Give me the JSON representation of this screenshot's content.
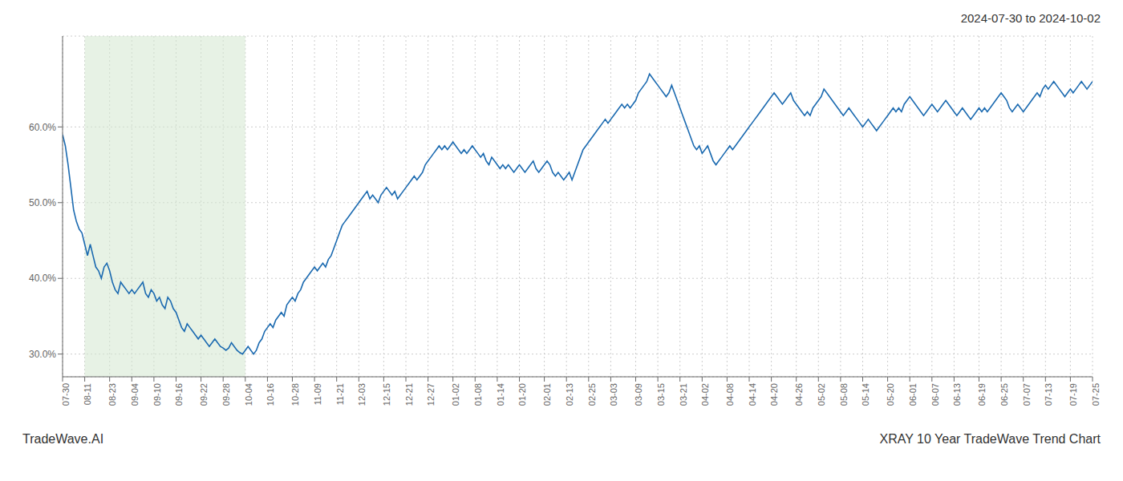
{
  "chart_data": {
    "type": "line",
    "title": "2024-07-30 to 2024-10-02",
    "annotations": [
      "TradeWave.AI",
      "XRAY 10 Year TradeWave Trend Chart"
    ],
    "color": "#1b6ab0",
    "grid": true,
    "ylim": [
      27.0,
      72.0
    ],
    "yticks": [
      {
        "value": 30.0,
        "label": "30.0%"
      },
      {
        "value": 40.0,
        "label": "40.0%"
      },
      {
        "value": 50.0,
        "label": "50.0%"
      },
      {
        "value": 60.0,
        "label": "60.0%"
      }
    ],
    "shade": {
      "start": "08-11",
      "end": "10-04",
      "color": "#d4e8d0"
    },
    "categories": [
      "07-30",
      null,
      null,
      null,
      null,
      null,
      null,
      null,
      "08-11",
      null,
      null,
      null,
      null,
      null,
      null,
      null,
      null,
      "08-23",
      null,
      null,
      null,
      null,
      null,
      null,
      null,
      "09-04",
      null,
      null,
      null,
      null,
      null,
      null,
      null,
      "09-10",
      null,
      null,
      null,
      null,
      null,
      null,
      null,
      "09-16",
      null,
      null,
      null,
      null,
      null,
      null,
      null,
      null,
      "09-22",
      null,
      null,
      null,
      null,
      null,
      null,
      null,
      "09-28",
      null,
      null,
      null,
      null,
      null,
      null,
      null,
      "10-04",
      null,
      null,
      null,
      null,
      null,
      null,
      null,
      "10-16",
      null,
      null,
      null,
      null,
      null,
      null,
      null,
      null,
      "10-28",
      null,
      null,
      null,
      null,
      null,
      null,
      null,
      "11-09",
      null,
      null,
      null,
      null,
      null,
      null,
      null,
      "11-21",
      null,
      null,
      null,
      null,
      null,
      null,
      null,
      "12-03",
      null,
      null,
      null,
      null,
      null,
      null,
      null,
      null,
      "12-15",
      null,
      null,
      null,
      null,
      null,
      null,
      null,
      "12-21",
      null,
      null,
      null,
      null,
      null,
      null,
      null,
      "12-27",
      null,
      null,
      null,
      null,
      null,
      null,
      null,
      null,
      "01-02",
      null,
      null,
      null,
      null,
      null,
      null,
      null,
      "01-08",
      null,
      null,
      null,
      null,
      null,
      null,
      null,
      "01-14",
      null,
      null,
      null,
      null,
      null,
      null,
      null,
      "01-20",
      null,
      null,
      null,
      null,
      null,
      null,
      null,
      null,
      "02-01",
      null,
      null,
      null,
      null,
      null,
      null,
      null,
      "02-13",
      null,
      null,
      null,
      null,
      null,
      null,
      null,
      "02-25",
      null,
      null,
      null,
      null,
      null,
      null,
      null,
      "03-03",
      null,
      null,
      null,
      null,
      null,
      null,
      null,
      null,
      "03-09",
      null,
      null,
      null,
      null,
      null,
      null,
      null,
      "03-15",
      null,
      null,
      null,
      null,
      null,
      null,
      null,
      "03-21",
      null,
      null,
      null,
      null,
      null,
      null,
      null,
      "04-02",
      null,
      null,
      null,
      null,
      null,
      null,
      null,
      null,
      "04-08",
      null,
      null,
      null,
      null,
      null,
      null,
      null,
      "04-14",
      null,
      null,
      null,
      null,
      null,
      null,
      null,
      "04-20",
      null,
      null,
      null,
      null,
      null,
      null,
      null,
      null,
      "04-26",
      null,
      null,
      null,
      null,
      null,
      null,
      null,
      "05-02",
      null,
      null,
      null,
      null,
      null,
      null,
      null,
      "05-08",
      null,
      null,
      null,
      null,
      null,
      null,
      null,
      "05-14",
      null,
      null,
      null,
      null,
      null,
      null,
      null,
      null,
      "05-20",
      null,
      null,
      null,
      null,
      null,
      null,
      null,
      "06-01",
      null,
      null,
      null,
      null,
      null,
      null,
      null,
      "06-07",
      null,
      null,
      null,
      null,
      null,
      null,
      null,
      "06-13",
      null,
      null,
      null,
      null,
      null,
      null,
      null,
      null,
      "06-19",
      null,
      null,
      null,
      null,
      null,
      null,
      null,
      "06-25",
      null,
      null,
      null,
      null,
      null,
      null,
      null,
      "07-07",
      null,
      null,
      null,
      null,
      null,
      null,
      null,
      "07-13",
      null,
      null,
      null,
      null,
      null,
      null,
      null,
      null,
      "07-19",
      null,
      null,
      null,
      null,
      null,
      null,
      null,
      "07-25"
    ],
    "values": [
      59.0,
      57.5,
      55.0,
      52.0,
      49.0,
      47.5,
      46.5,
      46.0,
      44.5,
      43.0,
      44.5,
      43.0,
      41.5,
      41.0,
      40.0,
      41.5,
      42.0,
      41.0,
      39.5,
      38.5,
      38.0,
      39.5,
      39.0,
      38.5,
      38.0,
      38.5,
      38.0,
      38.5,
      39.0,
      39.5,
      38.0,
      37.5,
      38.5,
      38.0,
      37.0,
      37.5,
      36.5,
      36.0,
      37.5,
      37.0,
      36.0,
      35.5,
      34.5,
      33.5,
      33.0,
      34.0,
      33.5,
      33.0,
      32.5,
      32.0,
      32.5,
      32.0,
      31.5,
      31.0,
      31.5,
      32.0,
      31.5,
      31.0,
      30.8,
      30.5,
      30.8,
      31.5,
      31.0,
      30.5,
      30.2,
      30.0,
      30.5,
      31.0,
      30.5,
      30.0,
      30.5,
      31.5,
      32.0,
      33.0,
      33.5,
      34.0,
      33.5,
      34.5,
      35.0,
      35.5,
      35.0,
      36.5,
      37.0,
      37.5,
      37.0,
      38.0,
      38.5,
      39.5,
      40.0,
      40.5,
      41.0,
      41.5,
      41.0,
      41.5,
      42.0,
      41.5,
      42.5,
      43.0,
      44.0,
      45.0,
      46.0,
      47.0,
      47.5,
      48.0,
      48.5,
      49.0,
      49.5,
      50.0,
      50.5,
      51.0,
      51.5,
      50.5,
      51.0,
      50.5,
      50.0,
      51.0,
      51.5,
      52.0,
      51.5,
      51.0,
      51.5,
      50.5,
      51.0,
      51.5,
      52.0,
      52.5,
      53.0,
      53.5,
      53.0,
      53.5,
      54.0,
      55.0,
      55.5,
      56.0,
      56.5,
      57.0,
      57.5,
      57.0,
      57.5,
      57.0,
      57.5,
      58.0,
      57.5,
      57.0,
      56.5,
      57.0,
      56.5,
      57.0,
      57.5,
      57.0,
      56.5,
      56.0,
      56.5,
      55.5,
      55.0,
      56.0,
      55.5,
      55.0,
      54.5,
      55.0,
      54.5,
      55.0,
      54.5,
      54.0,
      54.5,
      55.0,
      54.5,
      54.0,
      54.5,
      55.0,
      55.5,
      54.5,
      54.0,
      54.5,
      55.0,
      55.5,
      55.0,
      54.0,
      53.5,
      54.0,
      53.5,
      53.0,
      53.5,
      54.0,
      53.0,
      54.0,
      55.0,
      56.0,
      57.0,
      57.5,
      58.0,
      58.5,
      59.0,
      59.5,
      60.0,
      60.5,
      61.0,
      60.5,
      61.0,
      61.5,
      62.0,
      62.5,
      63.0,
      62.5,
      63.0,
      62.5,
      63.0,
      63.5,
      64.5,
      65.0,
      65.5,
      66.0,
      67.0,
      66.5,
      66.0,
      65.5,
      65.0,
      64.5,
      64.0,
      64.5,
      65.5,
      64.5,
      63.5,
      62.5,
      61.5,
      60.5,
      59.5,
      58.5,
      57.5,
      57.0,
      57.5,
      56.5,
      57.0,
      57.5,
      56.5,
      55.5,
      55.0,
      55.5,
      56.0,
      56.5,
      57.0,
      57.5,
      57.0,
      57.5,
      58.0,
      58.5,
      59.0,
      59.5,
      60.0,
      60.5,
      61.0,
      61.5,
      62.0,
      62.5,
      63.0,
      63.5,
      64.0,
      64.5,
      64.0,
      63.5,
      63.0,
      63.5,
      64.0,
      64.5,
      63.5,
      63.0,
      62.5,
      62.0,
      61.5,
      62.0,
      61.5,
      62.5,
      63.0,
      63.5,
      64.0,
      65.0,
      64.5,
      64.0,
      63.5,
      63.0,
      62.5,
      62.0,
      61.5,
      62.0,
      62.5,
      62.0,
      61.5,
      61.0,
      60.5,
      60.0,
      60.5,
      61.0,
      60.5,
      60.0,
      59.5,
      60.0,
      60.5,
      61.0,
      61.5,
      62.0,
      62.5,
      62.0,
      62.5,
      62.0,
      63.0,
      63.5,
      64.0,
      63.5,
      63.0,
      62.5,
      62.0,
      61.5,
      62.0,
      62.5,
      63.0,
      62.5,
      62.0,
      62.5,
      63.0,
      63.5,
      63.0,
      62.5,
      62.0,
      61.5,
      62.0,
      62.5,
      62.0,
      61.5,
      61.0,
      61.5,
      62.0,
      62.5,
      62.0,
      62.5,
      62.0,
      62.5,
      63.0,
      63.5,
      64.0,
      64.5,
      64.0,
      63.5,
      62.5,
      62.0,
      62.5,
      63.0,
      62.5,
      62.0,
      62.5,
      63.0,
      63.5,
      64.0,
      64.5,
      64.0,
      65.0,
      65.5,
      65.0,
      65.5,
      66.0,
      65.5,
      65.0,
      64.5,
      64.0,
      64.5,
      65.0,
      64.5,
      65.0,
      65.5,
      66.0,
      65.5,
      65.0,
      65.5,
      66.0
    ]
  }
}
